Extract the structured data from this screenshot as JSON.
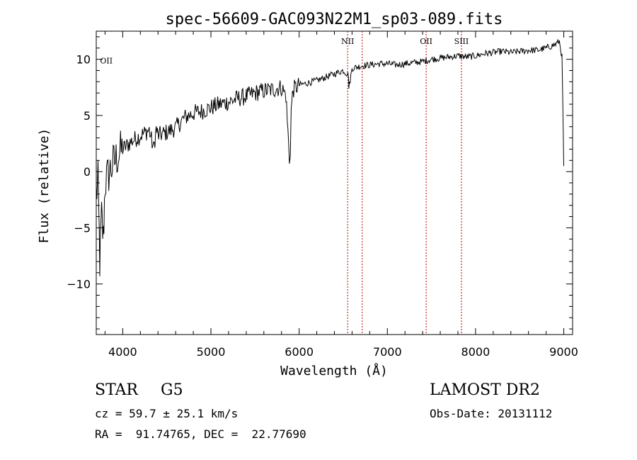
{
  "chart_data": {
    "type": "line",
    "title": "spec-56609-GAC093N22M1_sp03-089.fits",
    "xlabel": "Wavelength (Å)",
    "ylabel": "Flux (relative)",
    "xlim": [
      3700,
      9100
    ],
    "ylim": [
      -14.5,
      12.5
    ],
    "xticks": [
      4000,
      5000,
      6000,
      7000,
      8000,
      9000
    ],
    "xtick_labels": [
      "4000",
      "5000",
      "6000",
      "7000",
      "8000",
      "9000"
    ],
    "yticks": [
      -10,
      -5,
      0,
      5,
      10
    ],
    "ytick_labels": [
      "−10",
      "−5",
      "0",
      "5",
      "10"
    ],
    "grid": false,
    "line_color": "#000000",
    "series": [
      {
        "x": [
          3700,
          3720,
          3740,
          3760,
          3780,
          3800,
          3850,
          3900,
          3950,
          4000,
          4100,
          4200,
          4300,
          4350,
          4380,
          4400,
          4500,
          4600,
          4700,
          4800,
          4900,
          5000,
          5100,
          5200,
          5300,
          5400,
          5500,
          5600,
          5700,
          5800,
          5850,
          5880,
          5890,
          5900,
          5910,
          5930,
          6000,
          6100,
          6200,
          6300,
          6400,
          6500,
          6560,
          6563,
          6600,
          6700,
          6800,
          6900,
          7000,
          7100,
          7200,
          7300,
          7400,
          7500,
          7600,
          7700,
          7800,
          7900,
          8000,
          8100,
          8200,
          8300,
          8400,
          8500,
          8600,
          8700,
          8800,
          8900,
          8950,
          8980,
          9000
        ],
        "y": [
          -2,
          -1,
          -8,
          -4,
          -6,
          -1,
          0,
          0.8,
          1.5,
          2,
          2.7,
          3.2,
          3.7,
          2,
          3.8,
          3.2,
          3.5,
          3.9,
          4.8,
          5.2,
          5.4,
          5.7,
          6,
          6.2,
          6.5,
          6.7,
          7,
          7.2,
          7.3,
          7.5,
          6.8,
          2.5,
          1,
          2,
          5.5,
          7.3,
          7.7,
          7.9,
          8.1,
          8.4,
          8.7,
          9,
          8.6,
          7.4,
          9.2,
          9.4,
          9.5,
          9.6,
          9.6,
          9.5,
          9.6,
          9.7,
          9.8,
          10,
          10.1,
          10.2,
          10.3,
          10.2,
          10.3,
          10.5,
          10.6,
          10.7,
          10.6,
          10.7,
          10.8,
          10.8,
          11,
          11.3,
          11.6,
          10.2,
          0.5
        ]
      }
    ],
    "lines": [
      {
        "label": "NII",
        "x": 6550,
        "color": "#c00000",
        "style": "dotted"
      },
      {
        "label": "",
        "x": 6715,
        "color": "#c00000",
        "style": "dotted"
      },
      {
        "label": "OII",
        "x": 7440,
        "color": "#c00000",
        "style": "dotted"
      },
      {
        "label": "SIII",
        "x": 7840,
        "color": "#c00000",
        "style": "dotted"
      }
    ],
    "annotations": [
      {
        "text": "OII",
        "x": 3727,
        "y": 10
      }
    ]
  },
  "footer": {
    "object": "STAR",
    "subclass": "G5",
    "cz_line": "cz = 59.7 ± 25.1 km/s",
    "coord_line": "RA =  91.74765, DEC =  22.77690",
    "survey": "LAMOST DR2",
    "obs_date": "Obs-Date: 20131112"
  }
}
